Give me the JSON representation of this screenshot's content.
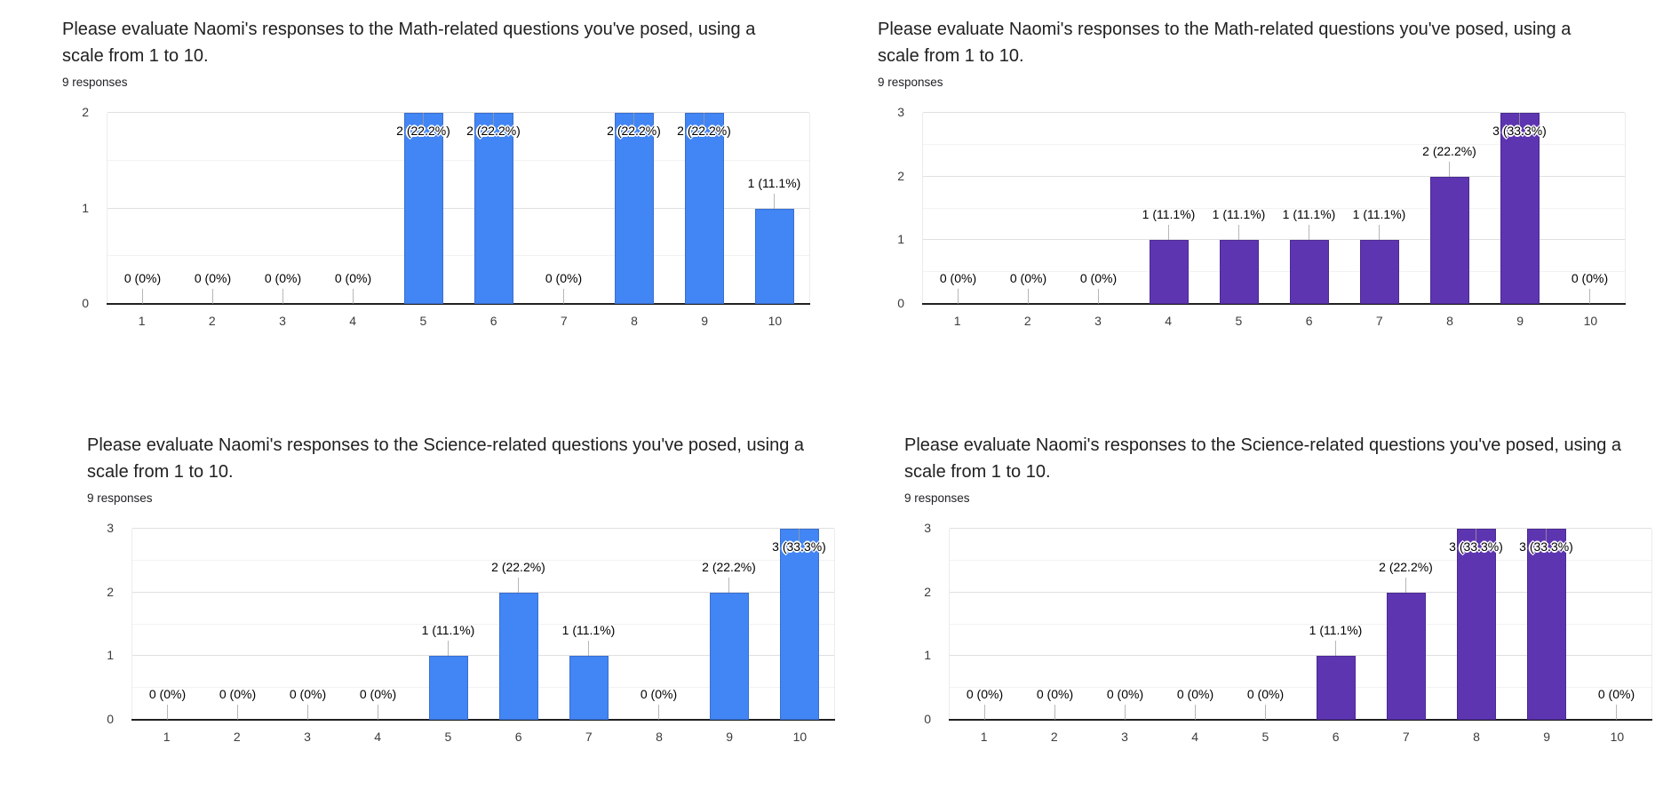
{
  "page": {
    "background": "#ffffff"
  },
  "chart_data": [
    {
      "type": "bar",
      "title": "Please evaluate Naomi's responses to the Math-related questions you've posed, using a scale from 1 to 10.",
      "responses_label": "9 responses",
      "bar_color": "#4285f4",
      "bar_border": "#3a6fd0",
      "categories": [
        "1",
        "2",
        "3",
        "4",
        "5",
        "6",
        "7",
        "8",
        "9",
        "10"
      ],
      "values": [
        0,
        0,
        0,
        0,
        2,
        2,
        0,
        2,
        2,
        1
      ],
      "labels": [
        "0 (0%)",
        "0 (0%)",
        "0 (0%)",
        "0 (0%)",
        "2 (22.2%)",
        "2 (22.2%)",
        "0 (0%)",
        "2 (22.2%)",
        "2 (22.2%)",
        "1 (11.1%)"
      ],
      "xlabel": "",
      "ylabel": "",
      "ylim": [
        0,
        2
      ],
      "yticks": [
        0,
        1,
        2
      ],
      "grid": true,
      "legend": "none"
    },
    {
      "type": "bar",
      "title": "Please evaluate Naomi's responses to the Math-related questions you've posed, using a scale from 1 to 10.",
      "responses_label": "9 responses",
      "bar_color": "#5e35b1",
      "bar_border": "#4b2a93",
      "categories": [
        "1",
        "2",
        "3",
        "4",
        "5",
        "6",
        "7",
        "8",
        "9",
        "10"
      ],
      "values": [
        0,
        0,
        0,
        1,
        1,
        1,
        1,
        2,
        3,
        0
      ],
      "labels": [
        "0 (0%)",
        "0 (0%)",
        "0 (0%)",
        "1 (11.1%)",
        "1 (11.1%)",
        "1 (11.1%)",
        "1 (11.1%)",
        "2 (22.2%)",
        "3 (33.3%)",
        "0 (0%)"
      ],
      "xlabel": "",
      "ylabel": "",
      "ylim": [
        0,
        3
      ],
      "yticks": [
        0,
        1,
        2,
        3
      ],
      "grid": true,
      "legend": "none"
    },
    {
      "type": "bar",
      "title": "Please evaluate Naomi's responses to the Science-related questions you've posed, using a scale from 1 to 10.",
      "responses_label": "9 responses",
      "bar_color": "#4285f4",
      "bar_border": "#3a6fd0",
      "categories": [
        "1",
        "2",
        "3",
        "4",
        "5",
        "6",
        "7",
        "8",
        "9",
        "10"
      ],
      "values": [
        0,
        0,
        0,
        0,
        1,
        2,
        1,
        0,
        2,
        3
      ],
      "labels": [
        "0 (0%)",
        "0 (0%)",
        "0 (0%)",
        "0 (0%)",
        "1 (11.1%)",
        "2 (22.2%)",
        "1 (11.1%)",
        "0 (0%)",
        "2 (22.2%)",
        "3 (33.3%)"
      ],
      "xlabel": "",
      "ylabel": "",
      "ylim": [
        0,
        3
      ],
      "yticks": [
        0,
        1,
        2,
        3
      ],
      "grid": true,
      "legend": "none"
    },
    {
      "type": "bar",
      "title": "Please evaluate Naomi's responses to the Science-related questions you've posed, using a scale from 1 to 10.",
      "responses_label": "9 responses",
      "bar_color": "#5e35b1",
      "bar_border": "#4b2a93",
      "categories": [
        "1",
        "2",
        "3",
        "4",
        "5",
        "6",
        "7",
        "8",
        "9",
        "10"
      ],
      "values": [
        0,
        0,
        0,
        0,
        0,
        1,
        2,
        3,
        3,
        0
      ],
      "labels": [
        "0 (0%)",
        "0 (0%)",
        "0 (0%)",
        "0 (0%)",
        "0 (0%)",
        "1 (11.1%)",
        "2 (22.2%)",
        "3 (33.3%)",
        "3 (33.3%)",
        "0 (0%)"
      ],
      "xlabel": "",
      "ylabel": "",
      "ylim": [
        0,
        3
      ],
      "yticks": [
        0,
        1,
        2,
        3
      ],
      "grid": true,
      "legend": "none"
    }
  ]
}
